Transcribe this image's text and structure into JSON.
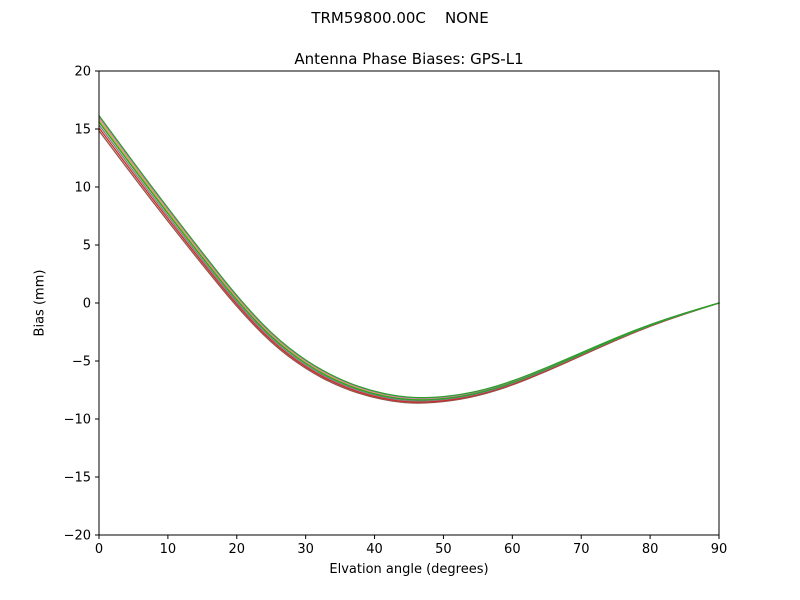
{
  "figure": {
    "suptitle": "TRM59800.00C    NONE",
    "axes_title": "Antenna Phase Biases: GPS-L1",
    "xlabel": "Elvation angle (degrees)",
    "ylabel": "Bias (mm)"
  },
  "chart_data": {
    "type": "line",
    "suptitle": "TRM59800.00C    NONE",
    "title": "Antenna Phase Biases: GPS-L1",
    "xlabel": "Elvation angle (degrees)",
    "ylabel": "Bias (mm)",
    "xlim": [
      0,
      90
    ],
    "ylim": [
      -20,
      20
    ],
    "xticks": [
      0,
      10,
      20,
      30,
      40,
      50,
      60,
      70,
      80,
      90
    ],
    "yticks": [
      -20,
      -15,
      -10,
      -5,
      0,
      5,
      10,
      15,
      20
    ],
    "xtick_labels": [
      "0",
      "10",
      "20",
      "30",
      "40",
      "50",
      "60",
      "70",
      "80",
      "90"
    ],
    "ytick_labels": [
      "−20",
      "−15",
      "−10",
      "−5",
      "0",
      "5",
      "10",
      "15",
      "20"
    ],
    "grid": false,
    "legend": "none",
    "background": "#ffffff",
    "x": [
      0,
      5,
      10,
      15,
      20,
      25,
      30,
      35,
      40,
      45,
      50,
      55,
      60,
      65,
      70,
      75,
      80,
      85,
      90
    ],
    "base_values": [
      15.6,
      11.6,
      7.7,
      3.9,
      0.2,
      -3.0,
      -5.3,
      -6.9,
      -7.9,
      -8.4,
      -8.3,
      -7.8,
      -6.9,
      -5.7,
      -4.4,
      -3.1,
      -1.9,
      -0.9,
      0.0
    ],
    "spread_weights": [
      1.0,
      0.95,
      0.88,
      0.8,
      0.72,
      0.63,
      0.55,
      0.48,
      0.42,
      0.37,
      0.33,
      0.3,
      0.27,
      0.24,
      0.2,
      0.16,
      0.11,
      0.06,
      0.0
    ],
    "series": [
      {
        "name": "curve-brown",
        "color": "#8c564b",
        "offset": -0.75
      },
      {
        "name": "curve-red",
        "color": "#d62728",
        "offset": -0.5
      },
      {
        "name": "curve-gray",
        "color": "#7f7f7f",
        "offset": -0.25
      },
      {
        "name": "curve-olive",
        "color": "#bcbd22",
        "offset": 0.18
      },
      {
        "name": "curve-pink",
        "color": "#e377c2",
        "offset": 0.38
      },
      {
        "name": "curve-green-2",
        "color": "#2ca02c",
        "offset": 0.0
      },
      {
        "name": "curve-green",
        "color": "#2ca02c",
        "offset": 0.55
      }
    ]
  }
}
